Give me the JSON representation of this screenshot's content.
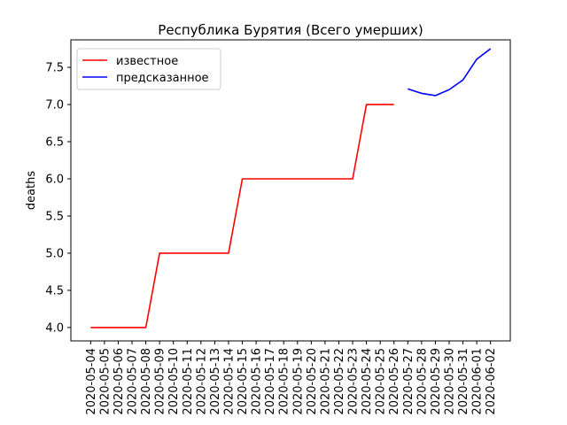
{
  "chart_data": {
    "type": "line",
    "title": "Республика Бурятия (Всего умерших)",
    "xlabel": "",
    "ylabel": "deaths",
    "ylim": [
      3.82,
      7.87
    ],
    "y_ticks": [
      "4.0",
      "4.5",
      "5.0",
      "5.5",
      "6.0",
      "6.5",
      "7.0",
      "7.5"
    ],
    "x_categories": [
      "2020-05-04",
      "2020-05-05",
      "2020-05-06",
      "2020-05-07",
      "2020-05-08",
      "2020-05-09",
      "2020-05-10",
      "2020-05-11",
      "2020-05-12",
      "2020-05-13",
      "2020-05-14",
      "2020-05-15",
      "2020-05-16",
      "2020-05-17",
      "2020-05-18",
      "2020-05-19",
      "2020-05-20",
      "2020-05-21",
      "2020-05-22",
      "2020-05-23",
      "2020-05-24",
      "2020-05-25",
      "2020-05-26",
      "2020-05-27",
      "2020-05-28",
      "2020-05-29",
      "2020-05-30",
      "2020-05-31",
      "2020-06-01",
      "2020-06-02"
    ],
    "grid": false,
    "legend_position": "top-left",
    "series": [
      {
        "name": "известное",
        "color": "#ff0000",
        "x": [
          "2020-05-04",
          "2020-05-05",
          "2020-05-06",
          "2020-05-07",
          "2020-05-08",
          "2020-05-09",
          "2020-05-10",
          "2020-05-11",
          "2020-05-12",
          "2020-05-13",
          "2020-05-14",
          "2020-05-15",
          "2020-05-16",
          "2020-05-17",
          "2020-05-18",
          "2020-05-19",
          "2020-05-20",
          "2020-05-21",
          "2020-05-22",
          "2020-05-23",
          "2020-05-24",
          "2020-05-25",
          "2020-05-26"
        ],
        "values": [
          4,
          4,
          4,
          4,
          4,
          5,
          5,
          5,
          5,
          5,
          5,
          6,
          6,
          6,
          6,
          6,
          6,
          6,
          6,
          6,
          7,
          7,
          7
        ]
      },
      {
        "name": "предсказанное",
        "color": "#0000ff",
        "x": [
          "2020-05-27",
          "2020-05-28",
          "2020-05-29",
          "2020-05-30",
          "2020-05-31",
          "2020-06-01",
          "2020-06-02"
        ],
        "values": [
          7.21,
          7.15,
          7.12,
          7.2,
          7.33,
          7.61,
          7.75
        ]
      }
    ]
  }
}
